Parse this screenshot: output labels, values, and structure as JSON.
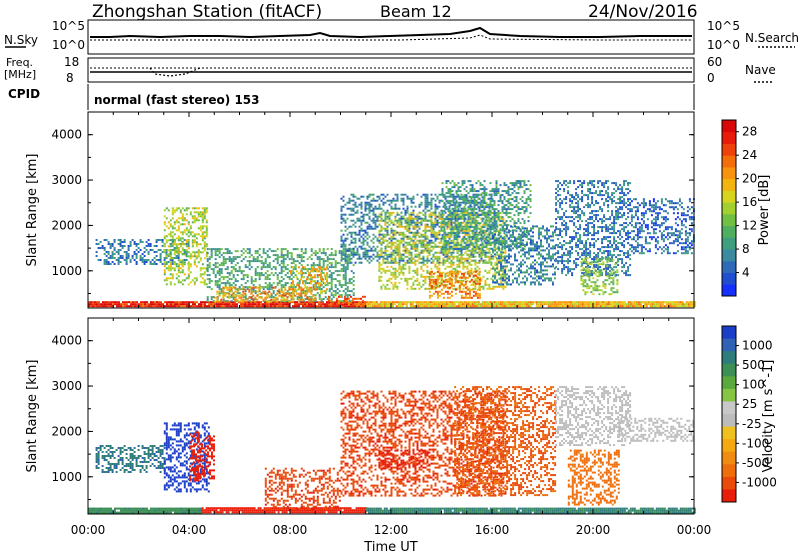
{
  "header": {
    "station": "Zhongshan Station (fitACF)",
    "beam": "Beam 12",
    "date": "24/Nov/2016"
  },
  "top_panels": {
    "nsky_label": "N.Sky",
    "nsearch_label": "N.Search",
    "freq_label_1": "Freq.",
    "freq_label_2": "[MHz]",
    "nave_label": "Nave",
    "cpid_label": "CPID",
    "noise_ticks_left": [
      "10^5",
      "10^0"
    ],
    "noise_ticks_right": [
      "10^5",
      "10^0"
    ],
    "freq_ticks": [
      "18",
      "8"
    ],
    "nave_ticks": [
      "60",
      "0"
    ],
    "cpid_text": "normal (fast stereo) 153"
  },
  "chart_data": [
    {
      "type": "heatmap",
      "name": "power",
      "ylabel": "Slant Range [km]",
      "xlabel": "",
      "ylim": [
        180,
        4500
      ],
      "yticks": [
        "1000",
        "2000",
        "3000",
        "4000"
      ],
      "colorbar": {
        "label": "Power [dB]",
        "ticks": [
          "4",
          "8",
          "12",
          "16",
          "20",
          "24",
          "28"
        ],
        "range": [
          0,
          30
        ],
        "colors": [
          "#1530ff",
          "#1f4fd0",
          "#2f6ab8",
          "#3c8aa0",
          "#3f9e7e",
          "#4fae60",
          "#72c043",
          "#a3d02e",
          "#d6d41c",
          "#f2b510",
          "#f7930d",
          "#f36e0b",
          "#ee420a",
          "#e81b0a",
          "#d80808"
        ]
      },
      "layers": [
        {
          "t0": 0.0,
          "t1": 11.0,
          "r0": 200,
          "r1": 330,
          "value": 27
        },
        {
          "t0": 11.0,
          "t1": 24.0,
          "r0": 210,
          "r1": 330,
          "value": 19
        },
        {
          "t0": 0.3,
          "t1": 4.0,
          "r0": 1150,
          "r1": 1700,
          "value": 6
        },
        {
          "t0": 3.0,
          "t1": 4.7,
          "r0": 700,
          "r1": 2400,
          "value": 15
        },
        {
          "t0": 4.7,
          "t1": 10.5,
          "r0": 340,
          "r1": 1500,
          "value": 10
        },
        {
          "t0": 5.0,
          "t1": 9.0,
          "r0": 330,
          "r1": 650,
          "value": 21
        },
        {
          "t0": 8.0,
          "t1": 9.5,
          "r0": 500,
          "r1": 1100,
          "value": 19
        },
        {
          "t0": 9.5,
          "t1": 11.0,
          "r0": 250,
          "r1": 450,
          "value": 24
        },
        {
          "t0": 10.0,
          "t1": 16.0,
          "r0": 1200,
          "r1": 2700,
          "value": 7
        },
        {
          "t0": 11.5,
          "t1": 16.5,
          "r0": 600,
          "r1": 2300,
          "value": 16
        },
        {
          "t0": 13.5,
          "t1": 15.5,
          "r0": 400,
          "r1": 1000,
          "value": 22
        },
        {
          "t0": 14.0,
          "t1": 17.5,
          "r0": 1500,
          "r1": 3000,
          "value": 9
        },
        {
          "t0": 16.0,
          "t1": 18.5,
          "r0": 700,
          "r1": 2000,
          "value": 7
        },
        {
          "t0": 18.5,
          "t1": 21.5,
          "r0": 900,
          "r1": 3000,
          "value": 6
        },
        {
          "t0": 19.5,
          "t1": 21.0,
          "r0": 500,
          "r1": 1300,
          "value": 14
        },
        {
          "t0": 21.5,
          "t1": 24.0,
          "r0": 1400,
          "r1": 2600,
          "value": 5
        }
      ]
    },
    {
      "type": "heatmap",
      "name": "velocity",
      "ylabel": "Slant Range [km]",
      "xlabel": "Time UT",
      "ylim": [
        180,
        4500
      ],
      "yticks": [
        "1000",
        "2000",
        "3000",
        "4000"
      ],
      "xticks": [
        "00:00",
        "04:00",
        "08:00",
        "12:00",
        "16:00",
        "20:00",
        "00:00"
      ],
      "xlim": [
        0,
        24
      ],
      "colorbar": {
        "label": "Velocity [m s^-1]",
        "ticks": [
          "1000",
          "500",
          "100",
          "25",
          "-25",
          "-100",
          "-500",
          "-1000"
        ],
        "colors": [
          "#1a3ec8",
          "#2f62b4",
          "#2e7d7b",
          "#3c8f55",
          "#5aa93c",
          "#86c543",
          "#c8c8c8",
          "#bcbcbc",
          "#f0c020",
          "#f5a812",
          "#f08c10",
          "#ee6e0c",
          "#ea4a0a",
          "#e81e0a"
        ]
      },
      "layers": [
        {
          "t0": 0.0,
          "t1": 4.5,
          "r0": 200,
          "r1": 320,
          "value": 40
        },
        {
          "t0": 4.5,
          "t1": 11.0,
          "r0": 200,
          "r1": 330,
          "value": -700
        },
        {
          "t0": 11.0,
          "t1": 24.0,
          "r0": 200,
          "r1": 320,
          "value": 60
        },
        {
          "t0": 0.3,
          "t1": 3.0,
          "r0": 1100,
          "r1": 1700,
          "value": 110
        },
        {
          "t0": 3.0,
          "t1": 4.8,
          "r0": 700,
          "r1": 2200,
          "value": 900
        },
        {
          "t0": 4.0,
          "t1": 5.0,
          "r0": 900,
          "r1": 2000,
          "value": -800
        },
        {
          "t0": 7.0,
          "t1": 10.0,
          "r0": 300,
          "r1": 1200,
          "value": -300
        },
        {
          "t0": 10.0,
          "t1": 16.5,
          "r0": 600,
          "r1": 2900,
          "value": -300
        },
        {
          "t0": 11.5,
          "t1": 13.5,
          "r0": 1200,
          "r1": 1600,
          "value": -900
        },
        {
          "t0": 14.5,
          "t1": 18.5,
          "r0": 600,
          "r1": 3000,
          "value": -150
        },
        {
          "t0": 18.5,
          "t1": 21.5,
          "r0": 1700,
          "r1": 3000,
          "value": 0
        },
        {
          "t0": 19.0,
          "t1": 21.0,
          "r0": 400,
          "r1": 1600,
          "value": -80
        },
        {
          "t0": 21.0,
          "t1": 24.0,
          "r0": 1800,
          "r1": 2300,
          "value": 0
        }
      ]
    }
  ]
}
